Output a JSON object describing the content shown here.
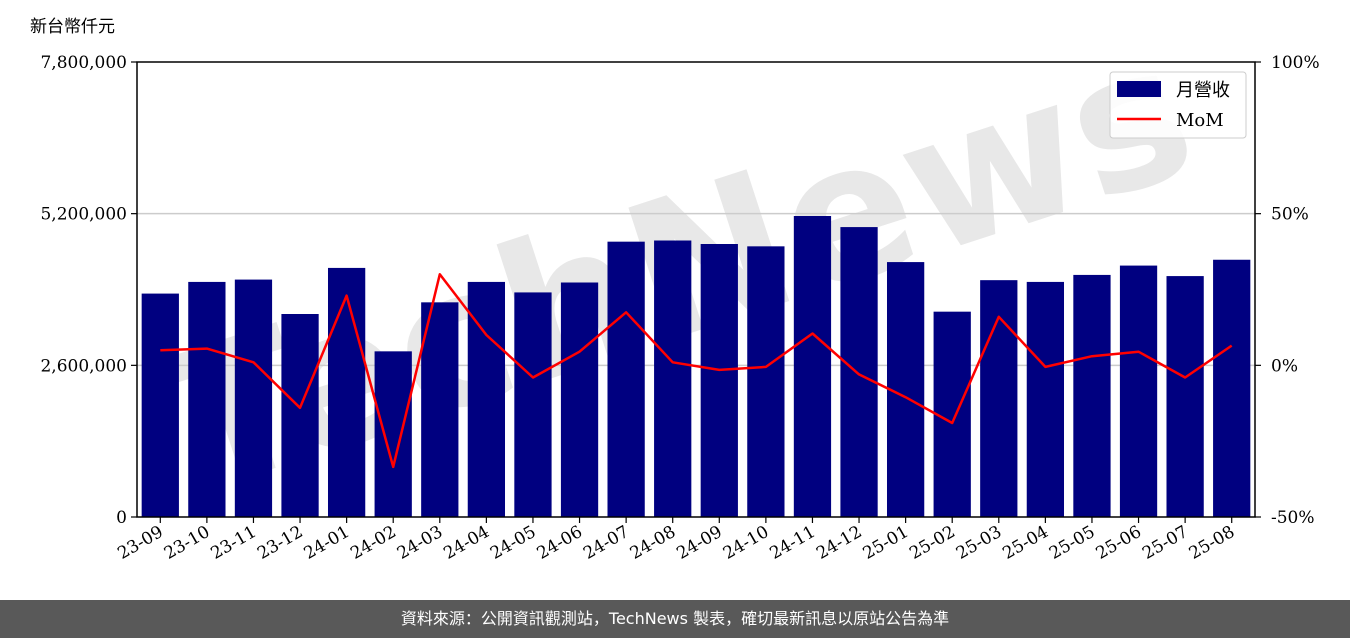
{
  "chart_data": {
    "type": "bar",
    "unit_label": "新台幣仟元",
    "categories": [
      "23-09",
      "23-10",
      "23-11",
      "23-12",
      "24-01",
      "24-02",
      "24-03",
      "24-04",
      "24-05",
      "24-06",
      "24-07",
      "24-08",
      "24-09",
      "24-10",
      "24-11",
      "24-12",
      "25-01",
      "25-02",
      "25-03",
      "25-04",
      "25-05",
      "25-06",
      "25-07",
      "25-08"
    ],
    "series": [
      {
        "name": "月營收",
        "type": "bar",
        "axis": "left",
        "color": "#000080",
        "values": [
          3830000,
          4030000,
          4070000,
          3480000,
          4270000,
          2840000,
          3680000,
          4030000,
          3850000,
          4020000,
          4720000,
          4740000,
          4680000,
          4640000,
          5160000,
          4970000,
          4370000,
          3520000,
          4060000,
          4030000,
          4150000,
          4310000,
          4130000,
          4410000
        ]
      },
      {
        "name": "MoM",
        "type": "line",
        "axis": "right",
        "color": "#ff0000",
        "values": [
          5,
          5.5,
          1,
          -14,
          23,
          -33.5,
          30,
          10,
          -4,
          4.5,
          17.5,
          1,
          -1.5,
          -0.5,
          10.5,
          -3,
          -10.5,
          -19,
          16,
          -0.5,
          3,
          4.5,
          -4,
          6.5
        ]
      }
    ],
    "y_left": {
      "min": 0,
      "max": 7800000,
      "ticks": [
        0,
        2600000,
        5200000,
        7800000
      ],
      "tick_labels": [
        "0",
        "2,600,000",
        "5,200,000",
        "7,800,000"
      ]
    },
    "y_right": {
      "min": -50,
      "max": 100,
      "ticks": [
        -50,
        0,
        50,
        100
      ],
      "tick_labels": [
        "-50%",
        "0%",
        "50%",
        "100%"
      ]
    },
    "grid": "horizontal",
    "legend_position": "top-right",
    "watermark": "TechNews"
  },
  "footer": {
    "text": "資料來源：公開資訊觀測站，TechNews 製表，確切最新訊息以原站公告為準"
  }
}
